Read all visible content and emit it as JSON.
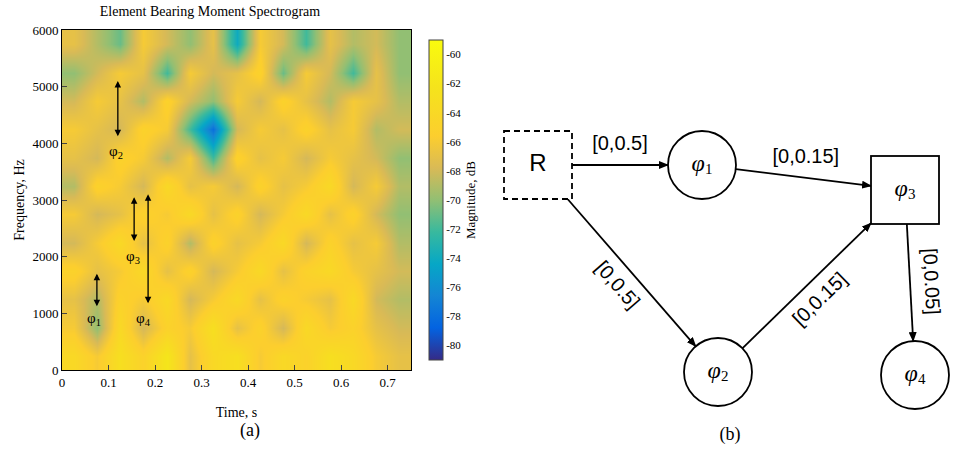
{
  "chart_data": {
    "type": "heatmap",
    "panel_label": "(a)",
    "title": "Element Bearing Moment Spectrogram",
    "x_label": "Time, s",
    "y_label": "Frequency, Hz",
    "xlim": [
      0,
      0.75
    ],
    "xticks": [
      0,
      0.1,
      0.2,
      0.3,
      0.4,
      0.5,
      0.6,
      0.7
    ],
    "ylim": [
      0,
      6000
    ],
    "yticks": [
      0,
      1000,
      2000,
      3000,
      4000,
      5000,
      6000
    ],
    "cells": {
      "x": [
        0.025,
        0.075,
        0.125,
        0.175,
        0.225,
        0.275,
        0.325,
        0.375,
        0.425,
        0.475,
        0.525,
        0.575,
        0.625,
        0.675,
        0.725
      ],
      "y": [
        250,
        750,
        1250,
        1750,
        2250,
        2750,
        3250,
        3750,
        4250,
        4750,
        5250,
        5750
      ],
      "z": [
        [
          -64,
          -66,
          -63,
          -65,
          -62,
          -67,
          -64,
          -63,
          -66,
          -64,
          -65,
          -63,
          -64,
          -66,
          -67
        ],
        [
          -66,
          -70,
          -64,
          -68,
          -65,
          -66,
          -63,
          -67,
          -65,
          -68,
          -64,
          -66,
          -65,
          -67,
          -68
        ],
        [
          -67,
          -69,
          -65,
          -66,
          -64,
          -68,
          -66,
          -64,
          -67,
          -65,
          -66,
          -67,
          -64,
          -68,
          -69
        ],
        [
          -65,
          -67,
          -66,
          -64,
          -67,
          -65,
          -68,
          -66,
          -64,
          -67,
          -65,
          -64,
          -66,
          -67,
          -68
        ],
        [
          -68,
          -66,
          -64,
          -67,
          -65,
          -69,
          -65,
          -67,
          -66,
          -64,
          -68,
          -65,
          -67,
          -66,
          -69
        ],
        [
          -66,
          -68,
          -67,
          -65,
          -66,
          -64,
          -67,
          -65,
          -68,
          -66,
          -64,
          -67,
          -65,
          -68,
          -70
        ],
        [
          -69,
          -65,
          -66,
          -68,
          -64,
          -67,
          -66,
          -68,
          -65,
          -67,
          -66,
          -64,
          -68,
          -66,
          -69
        ],
        [
          -67,
          -68,
          -65,
          -66,
          -69,
          -66,
          -72,
          -65,
          -67,
          -66,
          -68,
          -66,
          -67,
          -68,
          -70
        ],
        [
          -66,
          -67,
          -68,
          -65,
          -66,
          -72,
          -78,
          -68,
          -66,
          -67,
          -65,
          -67,
          -66,
          -69,
          -68
        ],
        [
          -68,
          -66,
          -67,
          -69,
          -65,
          -68,
          -70,
          -66,
          -68,
          -65,
          -67,
          -69,
          -66,
          -67,
          -69
        ],
        [
          -70,
          -68,
          -66,
          -67,
          -72,
          -66,
          -68,
          -67,
          -65,
          -71,
          -66,
          -68,
          -72,
          -67,
          -70
        ],
        [
          -67,
          -69,
          -71,
          -66,
          -68,
          -70,
          -67,
          -74,
          -66,
          -68,
          -72,
          -67,
          -69,
          -68,
          -70
        ]
      ]
    },
    "colorbar": {
      "title": "Magnitude, dB",
      "range": [
        -81,
        -59
      ],
      "ticks": [
        -60,
        -62,
        -64,
        -66,
        -68,
        -70,
        -72,
        -74,
        -76,
        -78,
        -80
      ]
    },
    "annotations": [
      {
        "text": "φ1",
        "x": 0.068,
        "y": 900,
        "arrow": {
          "x": 0.075,
          "y": [
            1100,
            1700
          ]
        }
      },
      {
        "text": "φ2",
        "x": 0.115,
        "y": 3850,
        "arrow": {
          "x": 0.12,
          "y": [
            4100,
            5100
          ]
        }
      },
      {
        "text": "φ3",
        "x": 0.152,
        "y": 2000,
        "arrow": {
          "x": 0.155,
          "y": [
            2250,
            3050
          ]
        }
      },
      {
        "text": "φ4",
        "x": 0.175,
        "y": 900,
        "arrow": {
          "x": 0.185,
          "y": [
            1150,
            3100
          ]
        }
      }
    ]
  },
  "diagram": {
    "panel_label": "(b)",
    "nodes": [
      {
        "label": "R",
        "shape": "dashed_square"
      },
      {
        "label": "φ1",
        "shape": "circle"
      },
      {
        "label": "φ2",
        "shape": "circle"
      },
      {
        "label": "φ3",
        "shape": "square"
      },
      {
        "label": "φ4",
        "shape": "circle"
      }
    ],
    "edges": [
      {
        "from": 0,
        "to": 1,
        "label": "[0,0.5]"
      },
      {
        "from": 0,
        "to": 2,
        "label": "[0,0.5]"
      },
      {
        "from": 1,
        "to": 3,
        "label": "[0,0.15]"
      },
      {
        "from": 2,
        "to": 3,
        "label": "[0,0.15]"
      },
      {
        "from": 3,
        "to": 4,
        "label": "[0,0.05]"
      }
    ]
  }
}
